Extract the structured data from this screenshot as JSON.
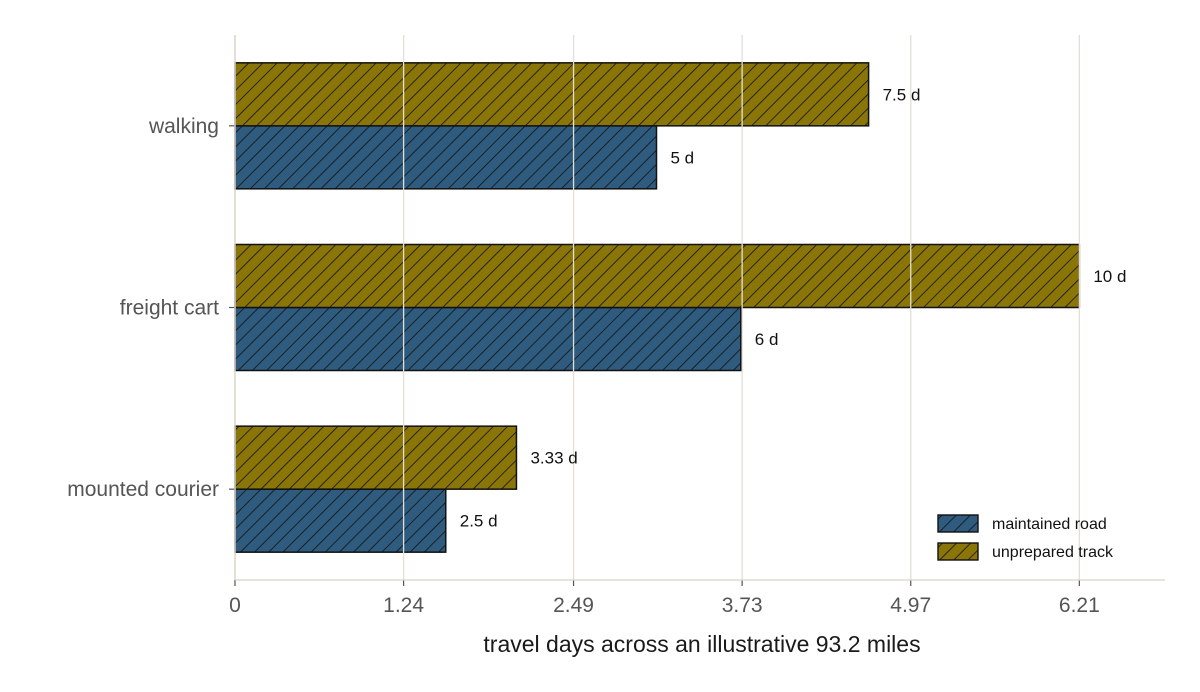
{
  "chart_data": {
    "type": "bar",
    "orientation": "horizontal",
    "categories": [
      "walking",
      "freight cart",
      "mounted courier"
    ],
    "series": [
      {
        "name": "maintained road",
        "values": [
          3.1,
          3.72,
          1.55
        ],
        "labels": [
          "5 d",
          "6 d",
          "2.5 d"
        ],
        "color": "#2e5b7e"
      },
      {
        "name": "unprepared track",
        "values": [
          4.66,
          6.21,
          2.07
        ],
        "labels": [
          "7.5 d",
          "10 d",
          "3.33 d"
        ],
        "color": "#8a7508"
      }
    ],
    "xlabel": "travel days across an illustrative 93.2 miles",
    "ylabel": "",
    "xlim": [
      0,
      6.84
    ],
    "x_ticks": [
      0,
      1.24,
      2.49,
      3.73,
      4.97,
      6.21
    ],
    "x_tick_labels": [
      "0",
      "1.24",
      "2.49",
      "3.73",
      "4.97",
      "6.21"
    ],
    "grid": "vertical",
    "hatch": "diagonal",
    "legend_position": "bottom-right"
  }
}
